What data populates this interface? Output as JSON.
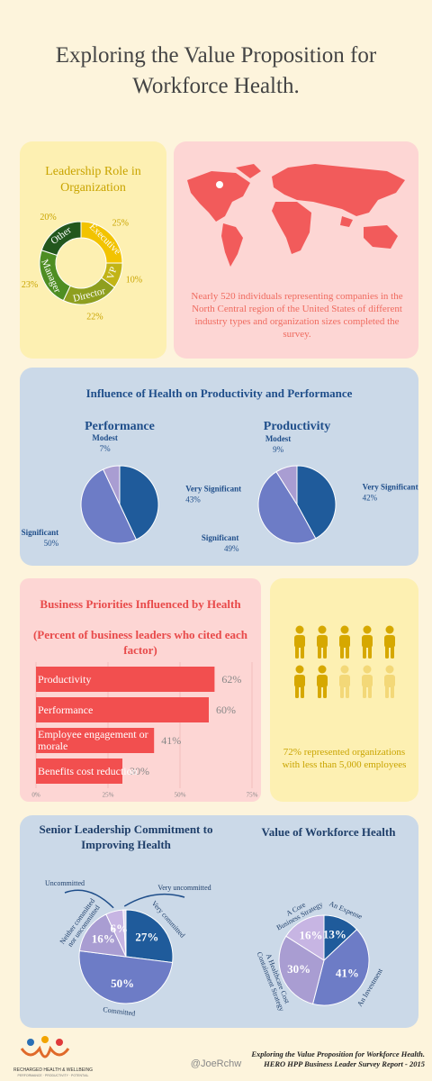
{
  "title": "Exploring the Value Proposition for Workforce Health.",
  "map_text": "Nearly 520 individuals representing companies in the North Central region of the United States of different industry types and organization sizes completed the survey.",
  "influence_title": "Influence of Health on Productivity and Performance",
  "employee_text": "72% represented organizations with less than 5,000 employees",
  "footer": {
    "handle": "@JoeRchw",
    "source_title": "Exploring the Value Proposition for Workforce Health.",
    "source_report": "HERO HPP Business Leader Survey Report - 2015",
    "logo_name": "RECHARGED HEALTH & WELLBEING",
    "logo_tagline": "PERFORMANCE · PRODUCTIVITY · POTENTIAL"
  },
  "chart_data": [
    {
      "type": "donut",
      "title": "Leadership Role in Organization",
      "categories": [
        "Executive",
        "VP",
        "Director",
        "Manager",
        "Other"
      ],
      "values": [
        25,
        10,
        22,
        23,
        20
      ],
      "value_labels": [
        "25%",
        "10%",
        "22%",
        "23%",
        "20%"
      ],
      "colors": [
        "#f2c300",
        "#c2b416",
        "#8e9f1f",
        "#4e8e23",
        "#22571d"
      ]
    },
    {
      "type": "pie",
      "title": "Performance",
      "categories": [
        "Very Significant",
        "Significant",
        "Modest"
      ],
      "values": [
        43,
        50,
        7
      ],
      "value_labels": [
        "43%",
        "50%",
        "7%"
      ],
      "colors": [
        "#1f5b9b",
        "#6d7cc6",
        "#a99dd2"
      ]
    },
    {
      "type": "pie",
      "title": "Productivity",
      "categories": [
        "Very Significant",
        "Significant",
        "Modest"
      ],
      "values": [
        42,
        49,
        9
      ],
      "value_labels": [
        "42%",
        "49%",
        "9%"
      ],
      "colors": [
        "#1f5b9b",
        "#6d7cc6",
        "#a99dd2"
      ]
    },
    {
      "type": "barh",
      "title": "Business Priorities Influenced by Health",
      "subtitle": "(Percent of business leaders who cited each factor)",
      "categories": [
        "Productivity",
        "Performance",
        "Employee engagement or morale",
        "Benefits cost reduction"
      ],
      "values": [
        62,
        60,
        41,
        30
      ],
      "value_labels": [
        "62%",
        "60%",
        "41%",
        "30%"
      ],
      "color": "#f24f4f",
      "xlim": [
        0,
        75
      ],
      "xticks": [
        {
          "value": 0,
          "label": "0%"
        },
        {
          "value": 25,
          "label": "25%"
        },
        {
          "value": 50,
          "label": "50%"
        },
        {
          "value": 75,
          "label": "75%"
        }
      ],
      "grid": true
    },
    {
      "type": "pie",
      "title": "Senior Leadership Commitment to Improving Health",
      "categories": [
        "Very committed",
        "Committed",
        "Neither committed nor uncommitted",
        "Uncommitted",
        "Very uncommitted"
      ],
      "values": [
        27,
        50,
        16,
        6,
        1
      ],
      "value_labels": [
        "27%",
        "50%",
        "16%",
        "6%",
        null
      ],
      "colors": [
        "#1f5b9b",
        "#6d7cc6",
        "#a99dd2",
        "#c7b5e3",
        "#e4dcf0"
      ]
    },
    {
      "type": "pie",
      "title": "Value of Workforce Health",
      "categories": [
        "An Expense",
        "An Investment",
        "A Healthcare Cost Containment Strategy",
        "A Core Business Strategy"
      ],
      "values": [
        13,
        41,
        30,
        16
      ],
      "value_labels": [
        "13%",
        "41%",
        "30%",
        "16%"
      ],
      "colors": [
        "#1f5b9b",
        "#6d7cc6",
        "#a99dd2",
        "#c7b5e3"
      ]
    }
  ]
}
